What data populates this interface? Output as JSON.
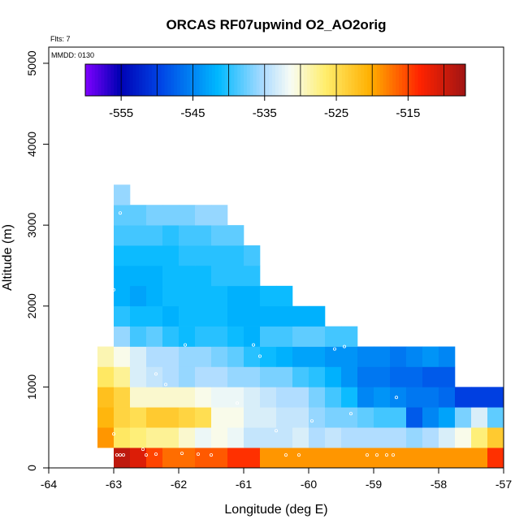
{
  "chart_data": {
    "type": "heatmap",
    "title": "ORCAS RF07upwind O2_AO2orig",
    "corner_label": "Flts: 7",
    "mmdd_label": "MMDD: 0130",
    "xlabel": "Longitude (deg E)",
    "ylabel": "Altitude (m)",
    "xlim": [
      -64,
      -57
    ],
    "ylim": [
      0,
      5200
    ],
    "xticks": [
      "-64",
      "-63",
      "-62",
      "-61",
      "-60",
      "-59",
      "-58",
      "-57"
    ],
    "yticks": [
      "0",
      "1000",
      "2000",
      "3000",
      "4000",
      "5000"
    ],
    "colorbar": {
      "range": [
        -560,
        -507
      ],
      "tick_values": [
        -555,
        -545,
        -535,
        -525,
        -515
      ],
      "tick_labels": [
        "-555",
        "-545",
        "-535",
        "-525",
        "-515"
      ]
    },
    "grid": false,
    "cell_size": {
      "lon": 0.25,
      "alt": 250
    },
    "rows": [
      {
        "alt": 0,
        "lon_start": -63.0,
        "values": [
          -509,
          -511,
          -515,
          -517,
          -517,
          -516,
          -516,
          -514,
          -514,
          -519,
          -519,
          -519,
          -519,
          -519,
          -519,
          -519,
          -519,
          -519,
          -519,
          -519,
          -519,
          -519,
          -519,
          -514
        ]
      },
      {
        "alt": 250,
        "lon_start": -63.25,
        "values": [
          -519,
          -526,
          -527,
          -528,
          -528,
          -530,
          -532,
          -531,
          -532,
          -534,
          -534,
          -534,
          -533,
          -535,
          -534,
          -535,
          -535,
          -535,
          -535,
          -536,
          -535,
          -533,
          -531,
          -527,
          -523
        ]
      },
      {
        "alt": 500,
        "lon_start": -63.25,
        "values": [
          -521,
          -524,
          -525,
          -523,
          -523,
          -524,
          -525,
          -531,
          -531,
          -533,
          -533,
          -534,
          -534,
          -536,
          -537,
          -537,
          -538,
          -539,
          -539,
          -548,
          -545,
          -543,
          -537,
          -533,
          -538
        ]
      },
      {
        "alt": 750,
        "lon_start": -63.25,
        "values": [
          -522,
          -524,
          -530,
          -530,
          -530,
          -530,
          -531,
          -532,
          -532,
          -533,
          -534,
          -535,
          -535,
          -537,
          -539,
          -541,
          -545,
          -544,
          -545,
          -546,
          -546,
          -547,
          -550,
          -550,
          -550
        ]
      },
      {
        "alt": 1000,
        "lon_start": -63.25,
        "values": [
          -526,
          -528,
          -533,
          -534,
          -535,
          -536,
          -535,
          -535,
          -536,
          -536,
          -537,
          -537,
          -539,
          -540,
          -542,
          -544,
          -546,
          -546,
          -547,
          -547,
          -548,
          -548
        ]
      },
      {
        "alt": 1250,
        "lon_start": -63.25,
        "values": [
          -529,
          -531,
          -533,
          -535,
          -535,
          -536,
          -536,
          -537,
          -538,
          -540,
          -541,
          -542,
          -543,
          -543,
          -544,
          -544,
          -545,
          -545,
          -546,
          -545,
          -544,
          -545
        ]
      },
      {
        "alt": 1500,
        "lon_start": -63.0,
        "values": [
          -536,
          -539,
          -538,
          -540,
          -541,
          -540,
          -540,
          -541,
          -542,
          -539,
          -539,
          -538,
          -538,
          -539,
          -539
        ]
      },
      {
        "alt": 1750,
        "lon_start": -63.0,
        "values": [
          -540,
          -541,
          -541,
          -542,
          -541,
          -541,
          -541,
          -542,
          -542,
          -542,
          -542,
          -542,
          -542
        ]
      },
      {
        "alt": 2000,
        "lon_start": -63.0,
        "values": [
          -542,
          -543,
          -542,
          -541,
          -541,
          -541,
          -541,
          -542,
          -542,
          -541,
          -541
        ]
      },
      {
        "alt": 2250,
        "lon_start": -63.0,
        "values": [
          -542,
          -542,
          -542,
          -541,
          -541,
          -541,
          -540,
          -540,
          -540
        ]
      },
      {
        "alt": 2500,
        "lon_start": -63.0,
        "values": [
          -541,
          -541,
          -541,
          -541,
          -540,
          -540,
          -540,
          -540,
          -539
        ]
      },
      {
        "alt": 2750,
        "lon_start": -63.0,
        "values": [
          -539,
          -539,
          -539,
          -540,
          -539,
          -539,
          -538,
          -538
        ]
      },
      {
        "alt": 3000,
        "lon_start": -63.0,
        "values": [
          -538,
          -538,
          -537,
          -537,
          -537,
          -536,
          -536
        ]
      },
      {
        "alt": 3250,
        "lon_start": -63.0,
        "values": [
          -536
        ]
      }
    ],
    "sample_points": [
      [
        -62.9,
        3150
      ],
      [
        -63.0,
        2200
      ],
      [
        -61.9,
        1520
      ],
      [
        -62.35,
        1160
      ],
      [
        -62.2,
        1030
      ],
      [
        -61.1,
        800
      ],
      [
        -60.85,
        1520
      ],
      [
        -60.75,
        1380
      ],
      [
        -59.6,
        1470
      ],
      [
        -59.45,
        1500
      ],
      [
        -60.5,
        460
      ],
      [
        -59.95,
        580
      ],
      [
        -59.35,
        670
      ],
      [
        -58.65,
        870
      ],
      [
        -63.0,
        420
      ],
      [
        -62.55,
        230
      ],
      [
        -62.95,
        160
      ],
      [
        -62.9,
        160
      ],
      [
        -62.85,
        160
      ],
      [
        -62.5,
        160
      ],
      [
        -62.35,
        170
      ],
      [
        -61.95,
        180
      ],
      [
        -61.7,
        170
      ],
      [
        -61.5,
        160
      ],
      [
        -60.35,
        160
      ],
      [
        -60.15,
        160
      ],
      [
        -59.1,
        160
      ],
      [
        -58.95,
        160
      ],
      [
        -58.8,
        160
      ],
      [
        -58.7,
        160
      ]
    ]
  }
}
